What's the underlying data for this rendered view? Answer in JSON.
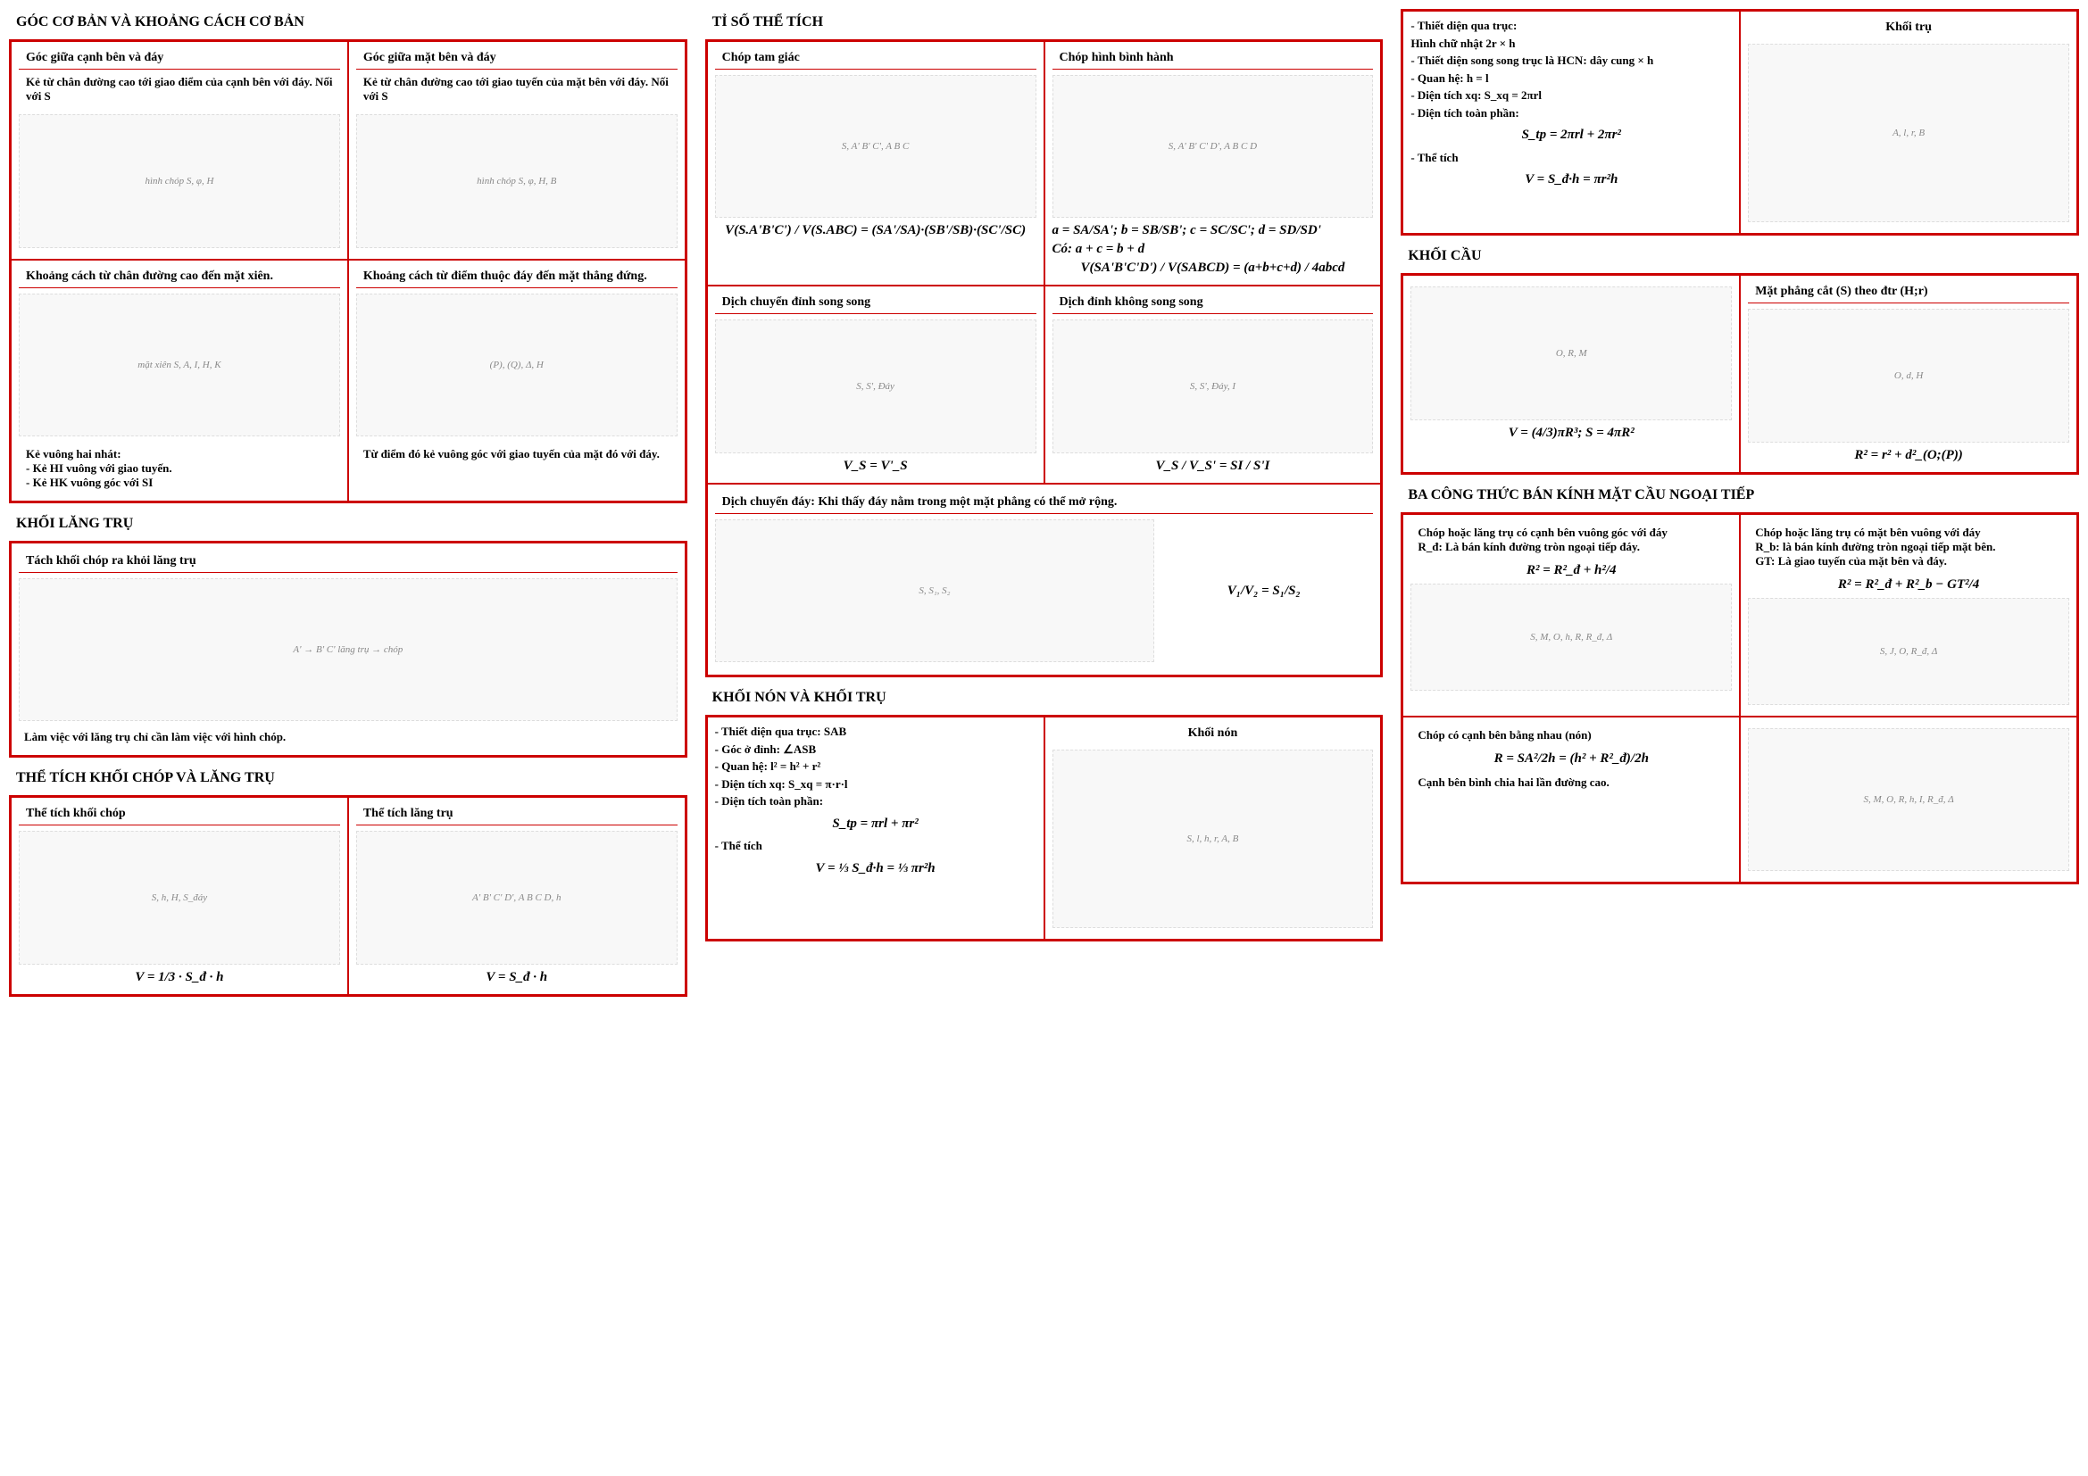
{
  "col1": {
    "sec1": {
      "title": "GÓC CƠ BẢN VÀ KHOẢNG CÁCH CƠ BẢN",
      "r1c1h": "Góc giữa cạnh bên và đáy",
      "r1c2h": "Góc giữa mặt bên và đáy",
      "r1c1b": "Kẻ từ chân đường cao tới giao điểm của cạnh bên với đáy. Nối với S",
      "r1c2b": "Kẻ từ chân đường cao tới giao tuyến của mặt bên với đáy. Nối với S",
      "r2c1h": "Khoảng cách từ chân đường cao đến mặt xiên.",
      "r2c2h": "Khoảng cách từ điểm thuộc đáy đến mặt thẳng đứng.",
      "r2c1b": "Kẻ vuông hai nhát:\n- Kẻ HI vuông với giao tuyến.\n- Kẻ HK vuông góc với SI",
      "r2c2b": "Từ điểm đó kẻ vuông góc với giao tuyến của mặt đó với đáy."
    },
    "sec2": {
      "title": "KHỐI LĂNG TRỤ",
      "h": "Tách khối chóp ra khỏi lăng trụ",
      "cap": "Làm việc với lăng trụ chỉ cần làm việc với hình chóp."
    },
    "sec3": {
      "title": "THỂ TÍCH KHỐI CHÓP VÀ LĂNG TRỤ",
      "c1h": "Thể tích khối chóp",
      "c2h": "Thể tích lăng trụ",
      "f1": "V = 1/3 · S_đ · h",
      "f2": "V = S_đ · h"
    }
  },
  "col2": {
    "sec1": {
      "title": "TỈ SỐ THỂ TÍCH",
      "r1c1h": "Chóp tam giác",
      "r1c2h": "Chóp hình bình hành",
      "f1": "V(S.A'B'C') / V(S.ABC) = (SA'/SA)·(SB'/SB)·(SC'/SC)",
      "f2a": "a = SA/SA'; b = SB/SB'; c = SC/SC'; d = SD/SD'",
      "f2b": "Có: a + c = b + d",
      "f2c": "V(SA'B'C'D') / V(SABCD) = (a+b+c+d) / 4abcd",
      "r2c1h": "Dịch chuyển đỉnh song song",
      "r2c2h": "Dịch đỉnh không song song",
      "f3": "V_S = V'_S",
      "f4": "V_S / V_S' = SI / S'I",
      "r3h": "Dịch chuyển đáy: Khi thấy đáy nằm trong một mặt phẳng có thể mở rộng.",
      "f5": "V₁/V₂ = S₁/S₂"
    },
    "sec2": {
      "title": "KHỐI NÓN VÀ KHỐI TRỤ",
      "diagCap": "Khối nón",
      "lines": [
        "- Thiết diện qua trục: SAB",
        "- Góc ở đỉnh: ∠ASB",
        "- Quan hệ: l² = h² + r²",
        "- Diện tích xq: S_xq = π·r·l",
        "- Diện tích toàn phần:",
        "    S_tp = πrl + πr²",
        "- Thể tích",
        "  V = ⅓ S_đ·h = ⅓ πr²h"
      ]
    }
  },
  "col3": {
    "sec0": {
      "diagCap": "Khối trụ",
      "lines": [
        "- Thiết diện qua trục:",
        "Hình chữ nhật 2r × h",
        "- Thiết diện song song trục là HCN: dây cung × h",
        "- Quan hệ: h = l",
        "- Diện tích xq: S_xq = 2πrl",
        "- Diện tích toàn phần:",
        "    S_tp = 2πrl + 2πr²",
        "- Thể tích",
        "    V = S_đ·h = πr²h"
      ]
    },
    "sec1": {
      "title": "KHỐI CẦU",
      "c2h": "Mặt phẳng cắt (S) theo đtr (H;r)",
      "f1": "V = (4/3)πR³;  S = 4πR²",
      "f2": "R² = r² + d²_(O;(P))"
    },
    "sec2": {
      "title": "BA CÔNG THỨC BÁN KÍNH MẶT CẦU NGOẠI TIẾP",
      "r1c1": "Chóp hoặc lăng trụ có cạnh bên vuông góc với đáy\nR_đ: Là bán kính đường tròn ngoại tiếp đáy.",
      "r1c1f": "R² = R²_đ + h²/4",
      "r1c2": "Chóp hoặc lăng trụ có mặt bên vuông với đáy\nR_b: là bán kính đường tròn ngoại tiếp mặt bên.\nGT: Là giao tuyến của mặt bên và đáy.",
      "r1c2f": "R² = R²_đ + R²_b − GT²/4",
      "r2c1": "Chóp có cạnh bên bằng nhau (nón)",
      "r2c1f": "R = SA²/2h = (h² + R²_đ)/2h",
      "r2c1b": "Cạnh bên bình chia hai lần đường cao."
    }
  },
  "style": {
    "border_color": "#c00000",
    "bg": "#ffffff",
    "title_fontsize": 16,
    "header_fontsize": 14,
    "body_fontsize": 13,
    "formula_fontsize": 15
  }
}
